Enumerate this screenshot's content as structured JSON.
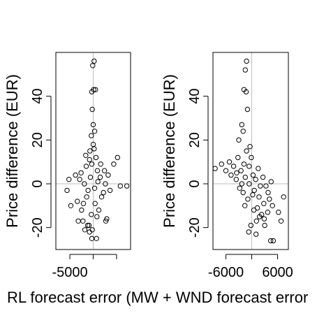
{
  "chart_data": [
    {
      "type": "scatter",
      "ylabel": "Price difference (EUR)",
      "xlim": [
        -8000,
        8000
      ],
      "ylim": [
        -30,
        60
      ],
      "x_ticks": [
        -5000,
        0,
        5000
      ],
      "x_tick_labels": [
        "-5000",
        "",
        ""
      ],
      "y_ticks": [
        -20,
        0,
        20,
        40
      ],
      "y_tick_labels": [
        "-20",
        "0",
        "20",
        "40"
      ],
      "reference_lines": {
        "x": 0,
        "y": 0
      },
      "grid": false,
      "series": [
        {
          "points": [
            [
              200,
              56
            ],
            [
              -100,
              54
            ],
            [
              100,
              43
            ],
            [
              -300,
              42
            ],
            [
              500,
              43
            ],
            [
              -200,
              34
            ],
            [
              0,
              27
            ],
            [
              300,
              24
            ],
            [
              -400,
              22
            ],
            [
              7200,
              -1
            ],
            [
              5800,
              -1
            ],
            [
              -2200,
              -17
            ],
            [
              -3200,
              -17
            ],
            [
              2700,
              -17
            ],
            [
              2900,
              -16
            ],
            [
              -900,
              -19
            ],
            [
              -800,
              -22
            ],
            [
              -1800,
              -21
            ],
            [
              -300,
              -25
            ],
            [
              700,
              -25
            ],
            [
              -200,
              -21
            ],
            [
              -1200,
              -19
            ],
            [
              -5600,
              -3
            ],
            [
              -4800,
              -10
            ],
            [
              -5200,
              2
            ],
            [
              5200,
              12
            ],
            [
              4400,
              9
            ],
            [
              3200,
              4
            ],
            [
              2600,
              0
            ],
            [
              1800,
              -6
            ],
            [
              -1500,
              8
            ],
            [
              -2600,
              5
            ],
            [
              -700,
              15
            ],
            [
              600,
              12
            ],
            [
              1500,
              3
            ],
            [
              -3400,
              -8
            ],
            [
              -2500,
              -12
            ],
            [
              -1100,
              -3
            ],
            [
              400,
              -9
            ],
            [
              1200,
              -12
            ],
            [
              -600,
              3
            ],
            [
              900,
              6
            ],
            [
              -1900,
              0
            ],
            [
              2200,
              -4
            ],
            [
              -300,
              9
            ],
            [
              300,
              -2
            ],
            [
              -1400,
              -6
            ],
            [
              1000,
              1
            ],
            [
              -2900,
              2
            ],
            [
              3600,
              -3
            ],
            [
              0,
              18
            ],
            [
              -800,
              11
            ],
            [
              1600,
              9
            ],
            [
              -2100,
              -9
            ],
            [
              2400,
              6
            ],
            [
              -400,
              -14
            ],
            [
              800,
              -15
            ],
            [
              -1600,
              13
            ],
            [
              200,
              16
            ],
            [
              -3800,
              4
            ]
          ]
        }
      ]
    },
    {
      "type": "scatter",
      "ylabel": "Price difference (EUR)",
      "xlim": [
        -9000,
        8500
      ],
      "ylim": [
        -30,
        60
      ],
      "x_ticks": [
        -6000,
        0,
        6000
      ],
      "x_tick_labels": [
        "-6000",
        "",
        "6000"
      ],
      "y_ticks": [
        -20,
        0,
        20,
        40
      ],
      "y_tick_labels": [
        "-20",
        "0",
        "20",
        "40"
      ],
      "reference_lines": {
        "x": 0,
        "y": 0
      },
      "grid": false,
      "series": [
        {
          "points": [
            [
              -1200,
              56
            ],
            [
              -1500,
              52
            ],
            [
              -1800,
              43
            ],
            [
              -1300,
              42
            ],
            [
              -1000,
              34
            ],
            [
              -2300,
              27
            ],
            [
              -2000,
              24
            ],
            [
              -3000,
              20
            ],
            [
              -8500,
              7
            ],
            [
              -7000,
              9
            ],
            [
              -6000,
              6
            ],
            [
              -5200,
              10
            ],
            [
              7400,
              -6
            ],
            [
              6800,
              -17
            ],
            [
              6200,
              -13
            ],
            [
              4400,
              -26
            ],
            [
              5000,
              -26
            ],
            [
              1000,
              -23
            ],
            [
              -700,
              -22
            ],
            [
              -200,
              -19
            ],
            [
              2900,
              -16
            ],
            [
              3700,
              -13
            ],
            [
              -4200,
              8
            ],
            [
              -3200,
              12
            ],
            [
              -2500,
              6
            ],
            [
              -1500,
              3
            ],
            [
              -600,
              0
            ],
            [
              600,
              -3
            ],
            [
              1700,
              -6
            ],
            [
              2800,
              -9
            ],
            [
              3800,
              -4
            ],
            [
              4500,
              1
            ],
            [
              -3600,
              2
            ],
            [
              -1800,
              9
            ],
            [
              300,
              4
            ],
            [
              1300,
              -11
            ],
            [
              2300,
              -14
            ],
            [
              -2800,
              -2
            ],
            [
              -900,
              -7
            ],
            [
              900,
              2
            ],
            [
              -4800,
              4
            ],
            [
              -100,
              12
            ],
            [
              1500,
              7
            ],
            [
              -2000,
              -4
            ],
            [
              3300,
              -1
            ],
            [
              -1200,
              15
            ],
            [
              500,
              -12
            ],
            [
              2000,
              -1
            ],
            [
              -3500,
              5
            ],
            [
              4800,
              -10
            ],
            [
              -600,
              8
            ],
            [
              1100,
              -17
            ],
            [
              2600,
              3
            ],
            [
              -2300,
              0
            ],
            [
              200,
              -5
            ],
            [
              3000,
              -19
            ],
            [
              -1600,
              -10
            ],
            [
              4100,
              -7
            ],
            [
              -400,
              17
            ],
            [
              1800,
              -15
            ]
          ]
        }
      ]
    }
  ],
  "shared_xlabel": "RL forecast error (MW + WND forecast error"
}
